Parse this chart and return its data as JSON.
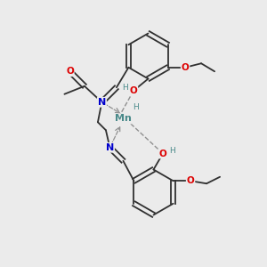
{
  "bg_color": "#ebebeb",
  "atom_colors": {
    "C": "#303030",
    "N": "#0000cc",
    "O": "#dd0000",
    "Mn": "#4a8a8a",
    "H": "#4a8a8a"
  },
  "bond_color": "#303030",
  "dative_color": "#909090"
}
